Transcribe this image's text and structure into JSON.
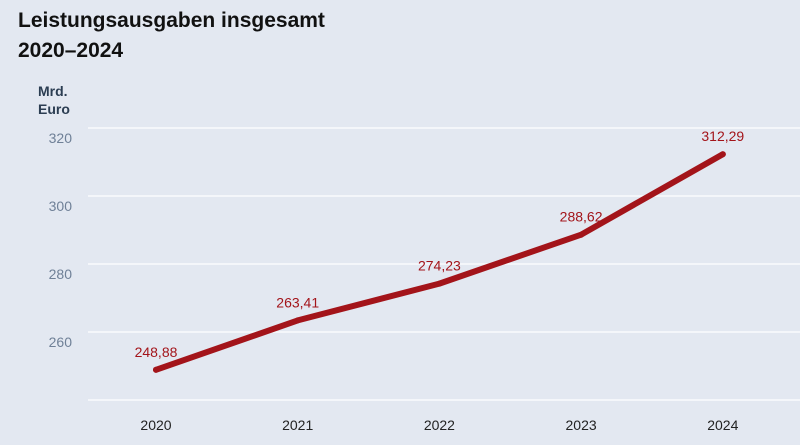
{
  "header": {
    "title_line1": "Leistungsausgaben insgesamt",
    "title_line2": "2020–2024"
  },
  "chart_data": {
    "type": "line",
    "title": "Leistungsausgaben insgesamt 2020–2024",
    "ylabel": "Mrd. Euro",
    "ylabel_line1": "Mrd.",
    "ylabel_line2": "Euro",
    "categories": [
      "2020",
      "2021",
      "2022",
      "2023",
      "2024"
    ],
    "series": [
      {
        "values": [
          248.88,
          263.41,
          274.23,
          288.62,
          312.29
        ],
        "labels": [
          "248,88",
          "263,41",
          "274,23",
          "288,62",
          "312,29"
        ],
        "color": "#a3141a"
      }
    ],
    "yticks": [
      260,
      280,
      300,
      320
    ],
    "ylim": [
      240,
      320
    ],
    "grid": true,
    "gridline_color": "#ffffff"
  }
}
